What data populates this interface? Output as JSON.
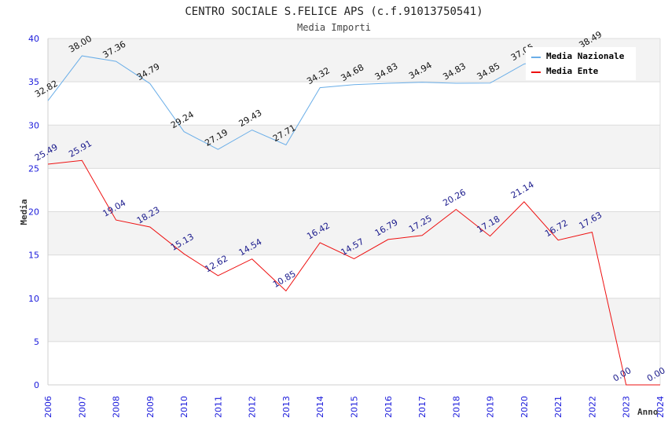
{
  "chart_data": {
    "type": "line",
    "title": "CENTRO SOCIALE S.FELICE APS (c.f.91013750541)",
    "subtitle": "Media Importi",
    "xlabel": "Anno",
    "ylabel": "Media",
    "ylim": [
      0,
      40
    ],
    "yticks": [
      "0",
      "5",
      "10",
      "15",
      "20",
      "25",
      "30",
      "35",
      "40"
    ],
    "x": [
      "2006",
      "2007",
      "2008",
      "2009",
      "2010",
      "2011",
      "2012",
      "2013",
      "2014",
      "2015",
      "2016",
      "2017",
      "2018",
      "2019",
      "2020",
      "2021",
      "2022",
      "2023",
      "2024"
    ],
    "grid": true,
    "legend_position": "top-right",
    "series": [
      {
        "name": "Media Nazionale",
        "color": "#6aaee8",
        "label_color": "#111111",
        "values": [
          32.82,
          38.0,
          37.36,
          34.79,
          29.24,
          27.19,
          29.43,
          27.71,
          34.32,
          34.68,
          34.83,
          34.94,
          34.83,
          34.85,
          37.05,
          null,
          38.49,
          null,
          null
        ],
        "labels": [
          "32.82",
          "38.00",
          "37.36",
          "34.79",
          "29.24",
          "27.19",
          "29.43",
          "27.71",
          "34.32",
          "34.68",
          "34.83",
          "34.94",
          "34.83",
          "34.85",
          "37.05",
          null,
          "38.49",
          null,
          null
        ]
      },
      {
        "name": "Media Ente",
        "color": "#ee1111",
        "label_color": "#1a1a8c",
        "values": [
          25.49,
          25.91,
          19.04,
          18.23,
          15.13,
          12.62,
          14.54,
          10.85,
          16.42,
          14.57,
          16.79,
          17.25,
          20.26,
          17.18,
          21.14,
          16.72,
          17.63,
          0.0,
          0.0
        ],
        "labels": [
          "25.49",
          "25.91",
          "19.04",
          "18.23",
          "15.13",
          "12.62",
          "14.54",
          "10.85",
          "16.42",
          "14.57",
          "16.79",
          "17.25",
          "20.26",
          "17.18",
          "21.14",
          "16.72",
          "17.63",
          "0.00",
          "0.00"
        ]
      }
    ]
  }
}
